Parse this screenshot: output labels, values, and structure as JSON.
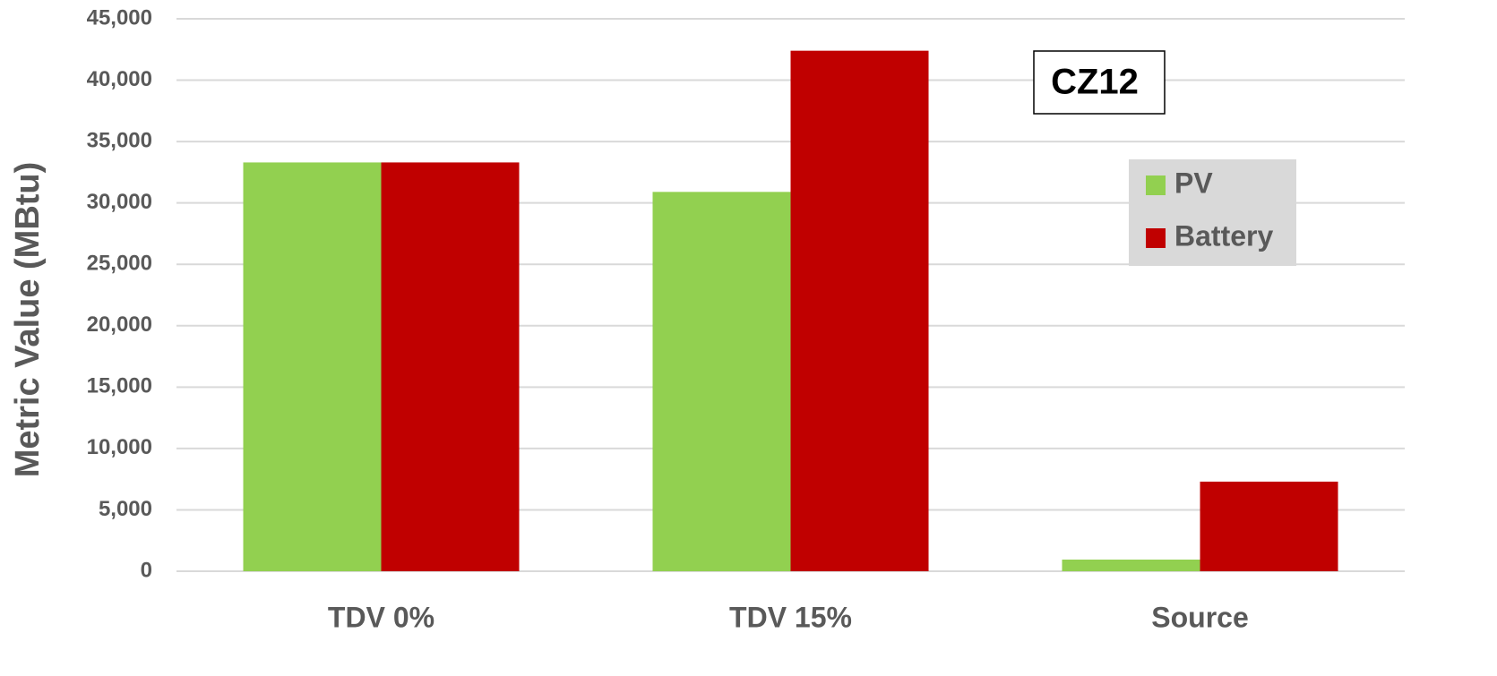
{
  "chart_data": {
    "type": "bar",
    "y_label": "Metric Value (MBtu)",
    "annotation": "CZ12",
    "categories": [
      "TDV 0%",
      "TDV 15%",
      "Source"
    ],
    "series": [
      {
        "name": "PV",
        "color": "#92d050",
        "values": [
          33300,
          30900,
          950
        ]
      },
      {
        "name": "Battery",
        "color": "#c00000",
        "values": [
          33300,
          42400,
          7300
        ]
      }
    ],
    "ylim": [
      0,
      45000
    ],
    "yticks": [
      0,
      {
        "value": 5000,
        "label": "5,000"
      },
      {
        "value": 10000,
        "label": "10,000"
      },
      {
        "value": 15000,
        "label": "15,000"
      },
      {
        "value": 20000,
        "label": "20,000"
      },
      {
        "value": 25000,
        "label": "25,000"
      },
      {
        "value": 30000,
        "label": "30,000"
      },
      {
        "value": 35000,
        "label": "35,000"
      },
      {
        "value": 40000,
        "label": "40,000"
      },
      {
        "value": 45000,
        "label": "45,000"
      }
    ],
    "grid": true,
    "legend_position": "upper right"
  }
}
